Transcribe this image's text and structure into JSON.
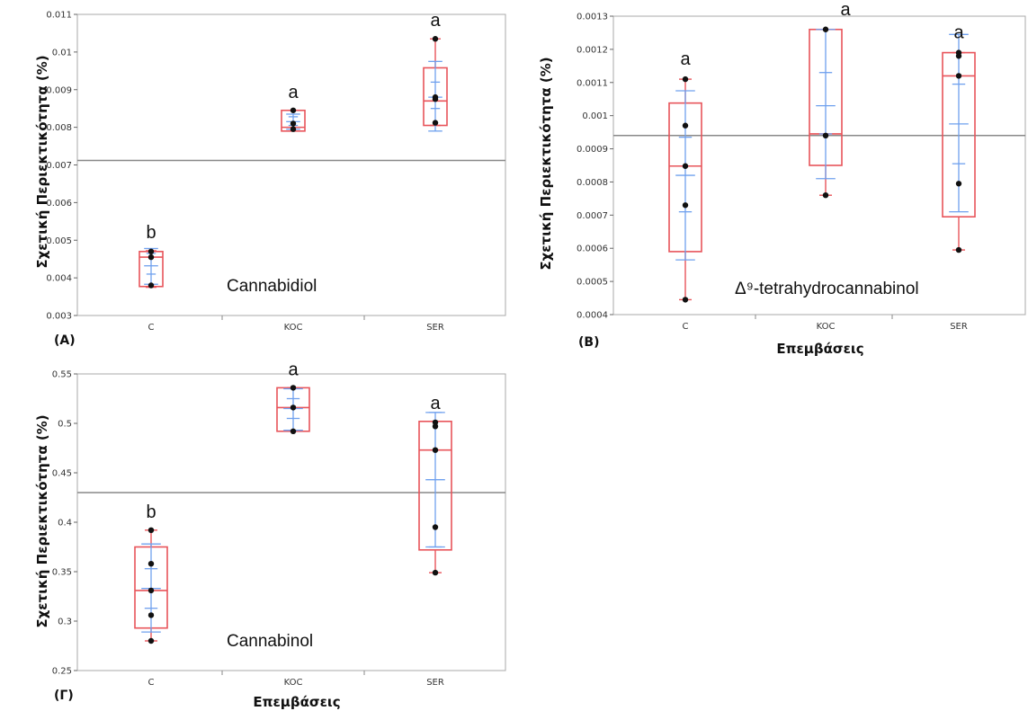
{
  "figure": {
    "colors": {
      "box": "#e8545a",
      "ci": "#6fa0ee",
      "point": "#111111",
      "mean_line": "#888888",
      "frame": "#aaaaaa"
    }
  },
  "chart_data": [
    {
      "type": "box",
      "panel_label": "(A)",
      "annotation": "Cannabidiol",
      "ylabel": "Σχετική Περιεκτικότητα (%)",
      "xlabel": "",
      "categories": [
        "C",
        "KOC",
        "SER"
      ],
      "ylim": [
        0.003,
        0.011
      ],
      "yticks": [
        0.003,
        0.004,
        0.005,
        0.006,
        0.007,
        0.008,
        0.009,
        0.01,
        0.011
      ],
      "ytick_labels": [
        "0.003",
        "0.004",
        "0.005",
        "0.006",
        "0.007",
        "0.008",
        "0.009",
        "0.01",
        "0.011"
      ],
      "grand_mean": 0.00712,
      "groups": [
        {
          "category": "C",
          "letter": "b",
          "min": 0.00375,
          "q1": 0.00377,
          "median": 0.00455,
          "q3": 0.0047,
          "max": 0.00472,
          "mean": 0.00432,
          "ci": [
            0.0041,
            0.00465
          ],
          "whisker_caps": [
            0.00383,
            0.00478
          ],
          "points": [
            0.0038,
            0.00455,
            0.0047
          ]
        },
        {
          "category": "KOC",
          "letter": "a",
          "min": 0.0079,
          "q1": 0.0079,
          "median": 0.008,
          "q3": 0.00845,
          "max": 0.00845,
          "mean": 0.00815,
          "ci": [
            0.00805,
            0.00828
          ],
          "whisker_caps": [
            0.00795,
            0.00835
          ],
          "points": [
            0.00795,
            0.0081,
            0.00845
          ]
        },
        {
          "category": "SER",
          "letter": "a",
          "min": 0.00805,
          "q1": 0.00805,
          "median": 0.0087,
          "q3": 0.00958,
          "max": 0.01035,
          "mean": 0.0088,
          "ci": [
            0.0085,
            0.0092
          ],
          "whisker_caps": [
            0.0079,
            0.00975
          ],
          "points": [
            0.00812,
            0.00875,
            0.0088,
            0.01035
          ]
        }
      ]
    },
    {
      "type": "box",
      "panel_label": "(B)",
      "annotation": "Δ⁹-tetrahydrocannabinol",
      "ylabel": "Σχετική Περιεκτικότητα (%)",
      "xlabel": "Επεμβάσεις",
      "categories": [
        "C",
        "KOC",
        "SER"
      ],
      "ylim": [
        0.0004,
        0.0013
      ],
      "yticks": [
        0.0004,
        0.0005,
        0.0006,
        0.0007,
        0.0008,
        0.0009,
        0.001,
        0.0011,
        0.0012,
        0.0013
      ],
      "ytick_labels": [
        "0.0004",
        "0.0005",
        "0.0006",
        "0.0007",
        "0.0008",
        "0.0009",
        "0.001",
        "0.0011",
        "0.0012",
        "0.0013"
      ],
      "grand_mean": 0.00094,
      "groups": [
        {
          "category": "C",
          "letter": "a",
          "min": 0.000445,
          "q1": 0.00059,
          "median": 0.000848,
          "q3": 0.001038,
          "max": 0.00111,
          "mean": 0.00082,
          "ci": [
            0.00071,
            0.000935
          ],
          "whisker_caps": [
            0.000565,
            0.001075
          ],
          "points": [
            0.000445,
            0.00073,
            0.000848,
            0.00097,
            0.00111
          ]
        },
        {
          "category": "KOC",
          "letter": "a",
          "min": 0.00076,
          "q1": 0.00085,
          "median": 0.000945,
          "q3": 0.00126,
          "max": 0.00126,
          "mean": 0.00103,
          "ci": [
            0.000945,
            0.00113
          ],
          "whisker_caps": [
            0.00081,
            0.00126
          ],
          "points": [
            0.00076,
            0.00094,
            0.00126
          ]
        },
        {
          "category": "SER",
          "letter": "a",
          "min": 0.000595,
          "q1": 0.000695,
          "median": 0.00112,
          "q3": 0.00119,
          "max": 0.00119,
          "mean": 0.000975,
          "ci": [
            0.000855,
            0.001095
          ],
          "whisker_caps": [
            0.00071,
            0.001245
          ],
          "points": [
            0.000595,
            0.000795,
            0.00112,
            0.00118,
            0.00119
          ]
        }
      ]
    },
    {
      "type": "box",
      "panel_label": "(Γ)",
      "annotation": "Cannabinol",
      "ylabel": "Σχετική Περιεκτικότητα (%)",
      "xlabel": "Επεμβάσεις",
      "categories": [
        "C",
        "KOC",
        "SER"
      ],
      "ylim": [
        0.25,
        0.55
      ],
      "yticks": [
        0.25,
        0.3,
        0.35,
        0.4,
        0.45,
        0.5,
        0.55
      ],
      "ytick_labels": [
        "0.25",
        "0.3",
        "0.35",
        "0.4",
        "0.45",
        "0.5",
        "0.55"
      ],
      "grand_mean": 0.43,
      "groups": [
        {
          "category": "C",
          "letter": "b",
          "min": 0.28,
          "q1": 0.293,
          "median": 0.331,
          "q3": 0.375,
          "max": 0.392,
          "mean": 0.333,
          "ci": [
            0.313,
            0.353
          ],
          "whisker_caps": [
            0.289,
            0.378
          ],
          "points": [
            0.28,
            0.306,
            0.331,
            0.358,
            0.392
          ]
        },
        {
          "category": "KOC",
          "letter": "a",
          "min": 0.492,
          "q1": 0.492,
          "median": 0.516,
          "q3": 0.536,
          "max": 0.536,
          "mean": 0.515,
          "ci": [
            0.505,
            0.525
          ],
          "whisker_caps": [
            0.493,
            0.535
          ],
          "points": [
            0.492,
            0.516,
            0.536
          ]
        },
        {
          "category": "SER",
          "letter": "a",
          "min": 0.349,
          "q1": 0.372,
          "median": 0.473,
          "q3": 0.502,
          "max": 0.502,
          "mean": 0.443,
          "ci": [
            0.375,
            0.511
          ],
          "whisker_caps": [
            0.375,
            0.511
          ],
          "points": [
            0.349,
            0.395,
            0.473,
            0.497,
            0.501
          ]
        }
      ]
    }
  ]
}
